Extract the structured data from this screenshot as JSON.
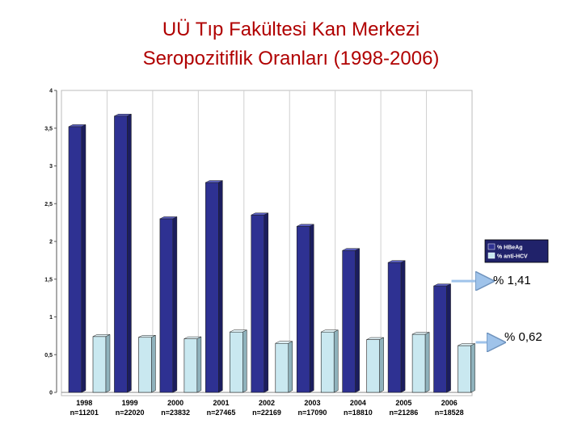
{
  "title_line1": "UÜ Tıp Fakültesi Kan Merkezi",
  "title_line2": "Seropozitiflik Oranları (1998-2006)",
  "colors": {
    "title": "#b00000",
    "hbeag": "#2e3192",
    "hcv": "#c9e8f0",
    "arrow": "#9fc3ea"
  },
  "chart_data": {
    "type": "bar",
    "categories": [
      "1998",
      "1999",
      "2000",
      "2001",
      "2002",
      "2003",
      "2004",
      "2005",
      "2006"
    ],
    "category_sublabels": [
      "n=11201",
      "n=22020",
      "n=23832",
      "n=27465",
      "n=22169",
      "n=17090",
      "n=18810",
      "n=21286",
      "n=18528"
    ],
    "series": [
      {
        "name": "% HBeAg",
        "values": [
          3.52,
          3.66,
          2.3,
          2.78,
          2.35,
          2.2,
          1.88,
          1.72,
          1.41
        ]
      },
      {
        "name": "% anti-HCV",
        "values": [
          0.74,
          0.73,
          0.71,
          0.8,
          0.65,
          0.8,
          0.7,
          0.77,
          0.62
        ]
      }
    ],
    "yticks": [
      "0",
      "0,5",
      "1",
      "1,5",
      "2",
      "2,5",
      "3",
      "3,5",
      "4"
    ],
    "ylim": [
      0,
      4
    ],
    "legend": "right",
    "grid": "vertical"
  },
  "callouts": [
    {
      "text": "% 1,41"
    },
    {
      "text": "% 0,62"
    }
  ]
}
